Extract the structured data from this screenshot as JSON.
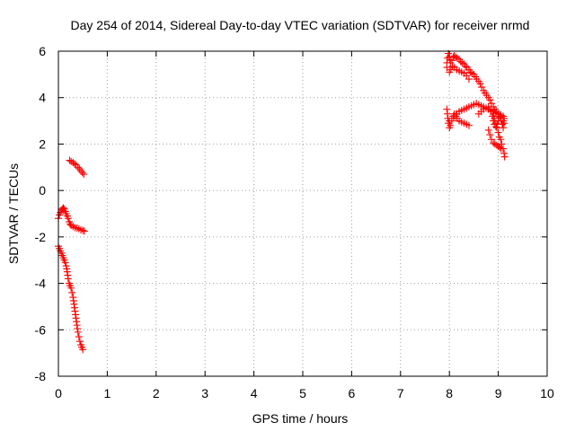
{
  "chart_data": {
    "type": "scatter",
    "title": "Day 254 of 2014, Sidereal Day-to-day VTEC variation (SDTVAR) for receiver nrmd",
    "xlabel": "GPS time / hours",
    "ylabel": "SDTVAR / TECUs",
    "xlim": [
      0,
      10
    ],
    "ylim": [
      -8,
      6
    ],
    "xticks": [
      0,
      1,
      2,
      3,
      4,
      5,
      6,
      7,
      8,
      9,
      10
    ],
    "yticks": [
      -8,
      -6,
      -4,
      -2,
      0,
      2,
      4,
      6
    ],
    "grid": true,
    "marker": "+",
    "colors": {
      "series": "#ff0000",
      "axis": "#000000",
      "grid": "#a0a0a0"
    },
    "series": [
      {
        "name": "SDTVAR",
        "segments": [
          {
            "points": [
              [
                0.23,
                1.3
              ],
              [
                0.26,
                1.25
              ],
              [
                0.3,
                1.2
              ],
              [
                0.33,
                1.15
              ],
              [
                0.36,
                1.1
              ],
              [
                0.4,
                1.0
              ],
              [
                0.43,
                0.93
              ],
              [
                0.46,
                0.85
              ],
              [
                0.49,
                0.77
              ],
              [
                0.52,
                0.7
              ]
            ]
          },
          {
            "points": [
              [
                0.0,
                -1.2
              ],
              [
                0.02,
                -1.05
              ],
              [
                0.04,
                -0.95
              ],
              [
                0.06,
                -0.85
              ],
              [
                0.08,
                -0.8
              ],
              [
                0.1,
                -0.75
              ],
              [
                0.12,
                -0.8
              ],
              [
                0.14,
                -0.9
              ],
              [
                0.16,
                -1.0
              ],
              [
                0.18,
                -1.1
              ],
              [
                0.2,
                -1.2
              ],
              [
                0.22,
                -1.35
              ],
              [
                0.24,
                -1.45
              ],
              [
                0.26,
                -1.5
              ],
              [
                0.3,
                -1.55
              ],
              [
                0.34,
                -1.6
              ],
              [
                0.38,
                -1.62
              ],
              [
                0.42,
                -1.65
              ],
              [
                0.46,
                -1.7
              ],
              [
                0.5,
                -1.72
              ],
              [
                0.53,
                -1.75
              ]
            ]
          },
          {
            "points": [
              [
                0.0,
                -2.4
              ],
              [
                0.02,
                -2.5
              ],
              [
                0.04,
                -2.6
              ],
              [
                0.06,
                -2.7
              ],
              [
                0.08,
                -2.8
              ],
              [
                0.1,
                -2.9
              ],
              [
                0.12,
                -3.0
              ],
              [
                0.14,
                -3.1
              ],
              [
                0.16,
                -3.25
              ],
              [
                0.18,
                -3.5
              ],
              [
                0.2,
                -3.8
              ],
              [
                0.22,
                -4.0
              ],
              [
                0.24,
                -4.1
              ],
              [
                0.26,
                -4.2
              ],
              [
                0.28,
                -4.4
              ],
              [
                0.3,
                -4.6
              ],
              [
                0.32,
                -4.9
              ],
              [
                0.34,
                -5.2
              ],
              [
                0.36,
                -5.5
              ],
              [
                0.38,
                -5.8
              ],
              [
                0.4,
                -6.1
              ],
              [
                0.42,
                -6.3
              ],
              [
                0.44,
                -6.5
              ],
              [
                0.46,
                -6.65
              ],
              [
                0.48,
                -6.75
              ],
              [
                0.5,
                -6.85
              ]
            ]
          },
          {
            "points": [
              [
                7.95,
                5.3
              ],
              [
                7.95,
                5.5
              ],
              [
                7.96,
                5.7
              ],
              [
                7.98,
                5.9
              ],
              [
                8.0,
                5.75
              ],
              [
                8.02,
                5.5
              ],
              [
                8.05,
                5.6
              ],
              [
                8.08,
                5.75
              ],
              [
                8.1,
                5.8
              ],
              [
                8.13,
                5.75
              ],
              [
                8.16,
                5.7
              ],
              [
                8.2,
                5.65
              ],
              [
                8.23,
                5.55
              ],
              [
                8.26,
                5.5
              ],
              [
                8.3,
                5.45
              ],
              [
                8.33,
                5.35
              ],
              [
                8.36,
                5.3
              ],
              [
                8.4,
                5.2
              ],
              [
                8.43,
                5.1
              ],
              [
                8.46,
                5.05
              ],
              [
                8.5,
                5.0
              ],
              [
                8.53,
                4.9
              ],
              [
                8.56,
                4.8
              ],
              [
                8.6,
                4.7
              ],
              [
                8.63,
                4.6
              ],
              [
                8.66,
                4.45
              ],
              [
                8.7,
                4.3
              ],
              [
                8.73,
                4.2
              ],
              [
                8.76,
                4.1
              ],
              [
                8.8,
                4.0
              ],
              [
                8.83,
                3.9
              ],
              [
                8.86,
                3.75
              ],
              [
                8.9,
                3.6
              ],
              [
                8.93,
                3.5
              ],
              [
                8.96,
                3.4
              ],
              [
                9.0,
                3.3
              ],
              [
                9.03,
                3.2
              ],
              [
                9.06,
                3.1
              ],
              [
                9.1,
                3.0
              ],
              [
                9.12,
                2.9
              ]
            ]
          },
          {
            "points": [
              [
                8.0,
                5.1
              ],
              [
                8.03,
                5.2
              ],
              [
                8.06,
                5.35
              ],
              [
                8.1,
                5.3
              ],
              [
                8.15,
                5.2
              ],
              [
                8.2,
                5.15
              ],
              [
                8.25,
                5.1
              ],
              [
                8.3,
                5.05
              ],
              [
                8.35,
                4.95
              ],
              [
                8.4,
                4.8
              ]
            ]
          },
          {
            "points": [
              [
                7.95,
                3.5
              ],
              [
                7.96,
                3.3
              ],
              [
                7.97,
                3.1
              ],
              [
                7.98,
                2.9
              ],
              [
                8.0,
                2.7
              ],
              [
                8.02,
                2.8
              ],
              [
                8.05,
                3.0
              ],
              [
                8.08,
                3.2
              ],
              [
                8.1,
                3.3
              ],
              [
                8.13,
                3.2
              ],
              [
                8.16,
                3.1
              ],
              [
                8.2,
                3.0
              ],
              [
                8.25,
                2.95
              ],
              [
                8.3,
                2.9
              ],
              [
                8.35,
                2.85
              ],
              [
                8.4,
                2.8
              ]
            ]
          },
          {
            "points": [
              [
                8.0,
                3.0
              ],
              [
                8.05,
                3.1
              ],
              [
                8.1,
                3.2
              ],
              [
                8.15,
                3.3
              ],
              [
                8.2,
                3.4
              ],
              [
                8.25,
                3.45
              ],
              [
                8.3,
                3.5
              ],
              [
                8.35,
                3.55
              ],
              [
                8.4,
                3.6
              ],
              [
                8.45,
                3.65
              ],
              [
                8.5,
                3.7
              ],
              [
                8.55,
                3.75
              ],
              [
                8.6,
                3.7
              ],
              [
                8.65,
                3.65
              ],
              [
                8.7,
                3.6
              ],
              [
                8.75,
                3.55
              ],
              [
                8.8,
                3.5
              ],
              [
                8.85,
                3.45
              ],
              [
                8.9,
                3.4
              ],
              [
                8.95,
                3.35
              ],
              [
                9.0,
                3.3
              ],
              [
                9.05,
                3.25
              ],
              [
                9.1,
                3.2
              ],
              [
                9.12,
                3.1
              ]
            ]
          },
          {
            "points": [
              [
                8.6,
                3.3
              ],
              [
                8.65,
                3.4
              ],
              [
                8.7,
                3.5
              ],
              [
                8.75,
                3.55
              ],
              [
                8.8,
                3.6
              ],
              [
                8.85,
                3.5
              ],
              [
                8.9,
                3.3
              ],
              [
                8.92,
                3.1
              ],
              [
                8.95,
                2.9
              ],
              [
                8.97,
                2.7
              ],
              [
                9.0,
                2.5
              ],
              [
                9.02,
                2.3
              ],
              [
                9.05,
                2.2
              ],
              [
                9.07,
                2.0
              ],
              [
                9.1,
                1.8
              ],
              [
                9.12,
                1.6
              ],
              [
                9.13,
                1.45
              ]
            ]
          },
          {
            "points": [
              [
                8.8,
                2.6
              ],
              [
                8.83,
                2.4
              ],
              [
                8.86,
                2.2
              ],
              [
                8.9,
                2.05
              ],
              [
                8.93,
                2.0
              ],
              [
                8.97,
                1.95
              ],
              [
                9.0,
                1.9
              ],
              [
                9.03,
                1.85
              ],
              [
                9.06,
                1.8
              ]
            ]
          },
          {
            "points": [
              [
                8.85,
                3.4
              ],
              [
                8.88,
                3.2
              ],
              [
                8.9,
                3.0
              ],
              [
                8.92,
                2.85
              ],
              [
                8.95,
                2.75
              ],
              [
                8.98,
                2.85
              ],
              [
                9.0,
                3.0
              ],
              [
                9.03,
                3.15
              ],
              [
                9.06,
                3.0
              ],
              [
                9.08,
                2.85
              ],
              [
                9.1,
                2.7
              ]
            ]
          }
        ]
      }
    ]
  }
}
